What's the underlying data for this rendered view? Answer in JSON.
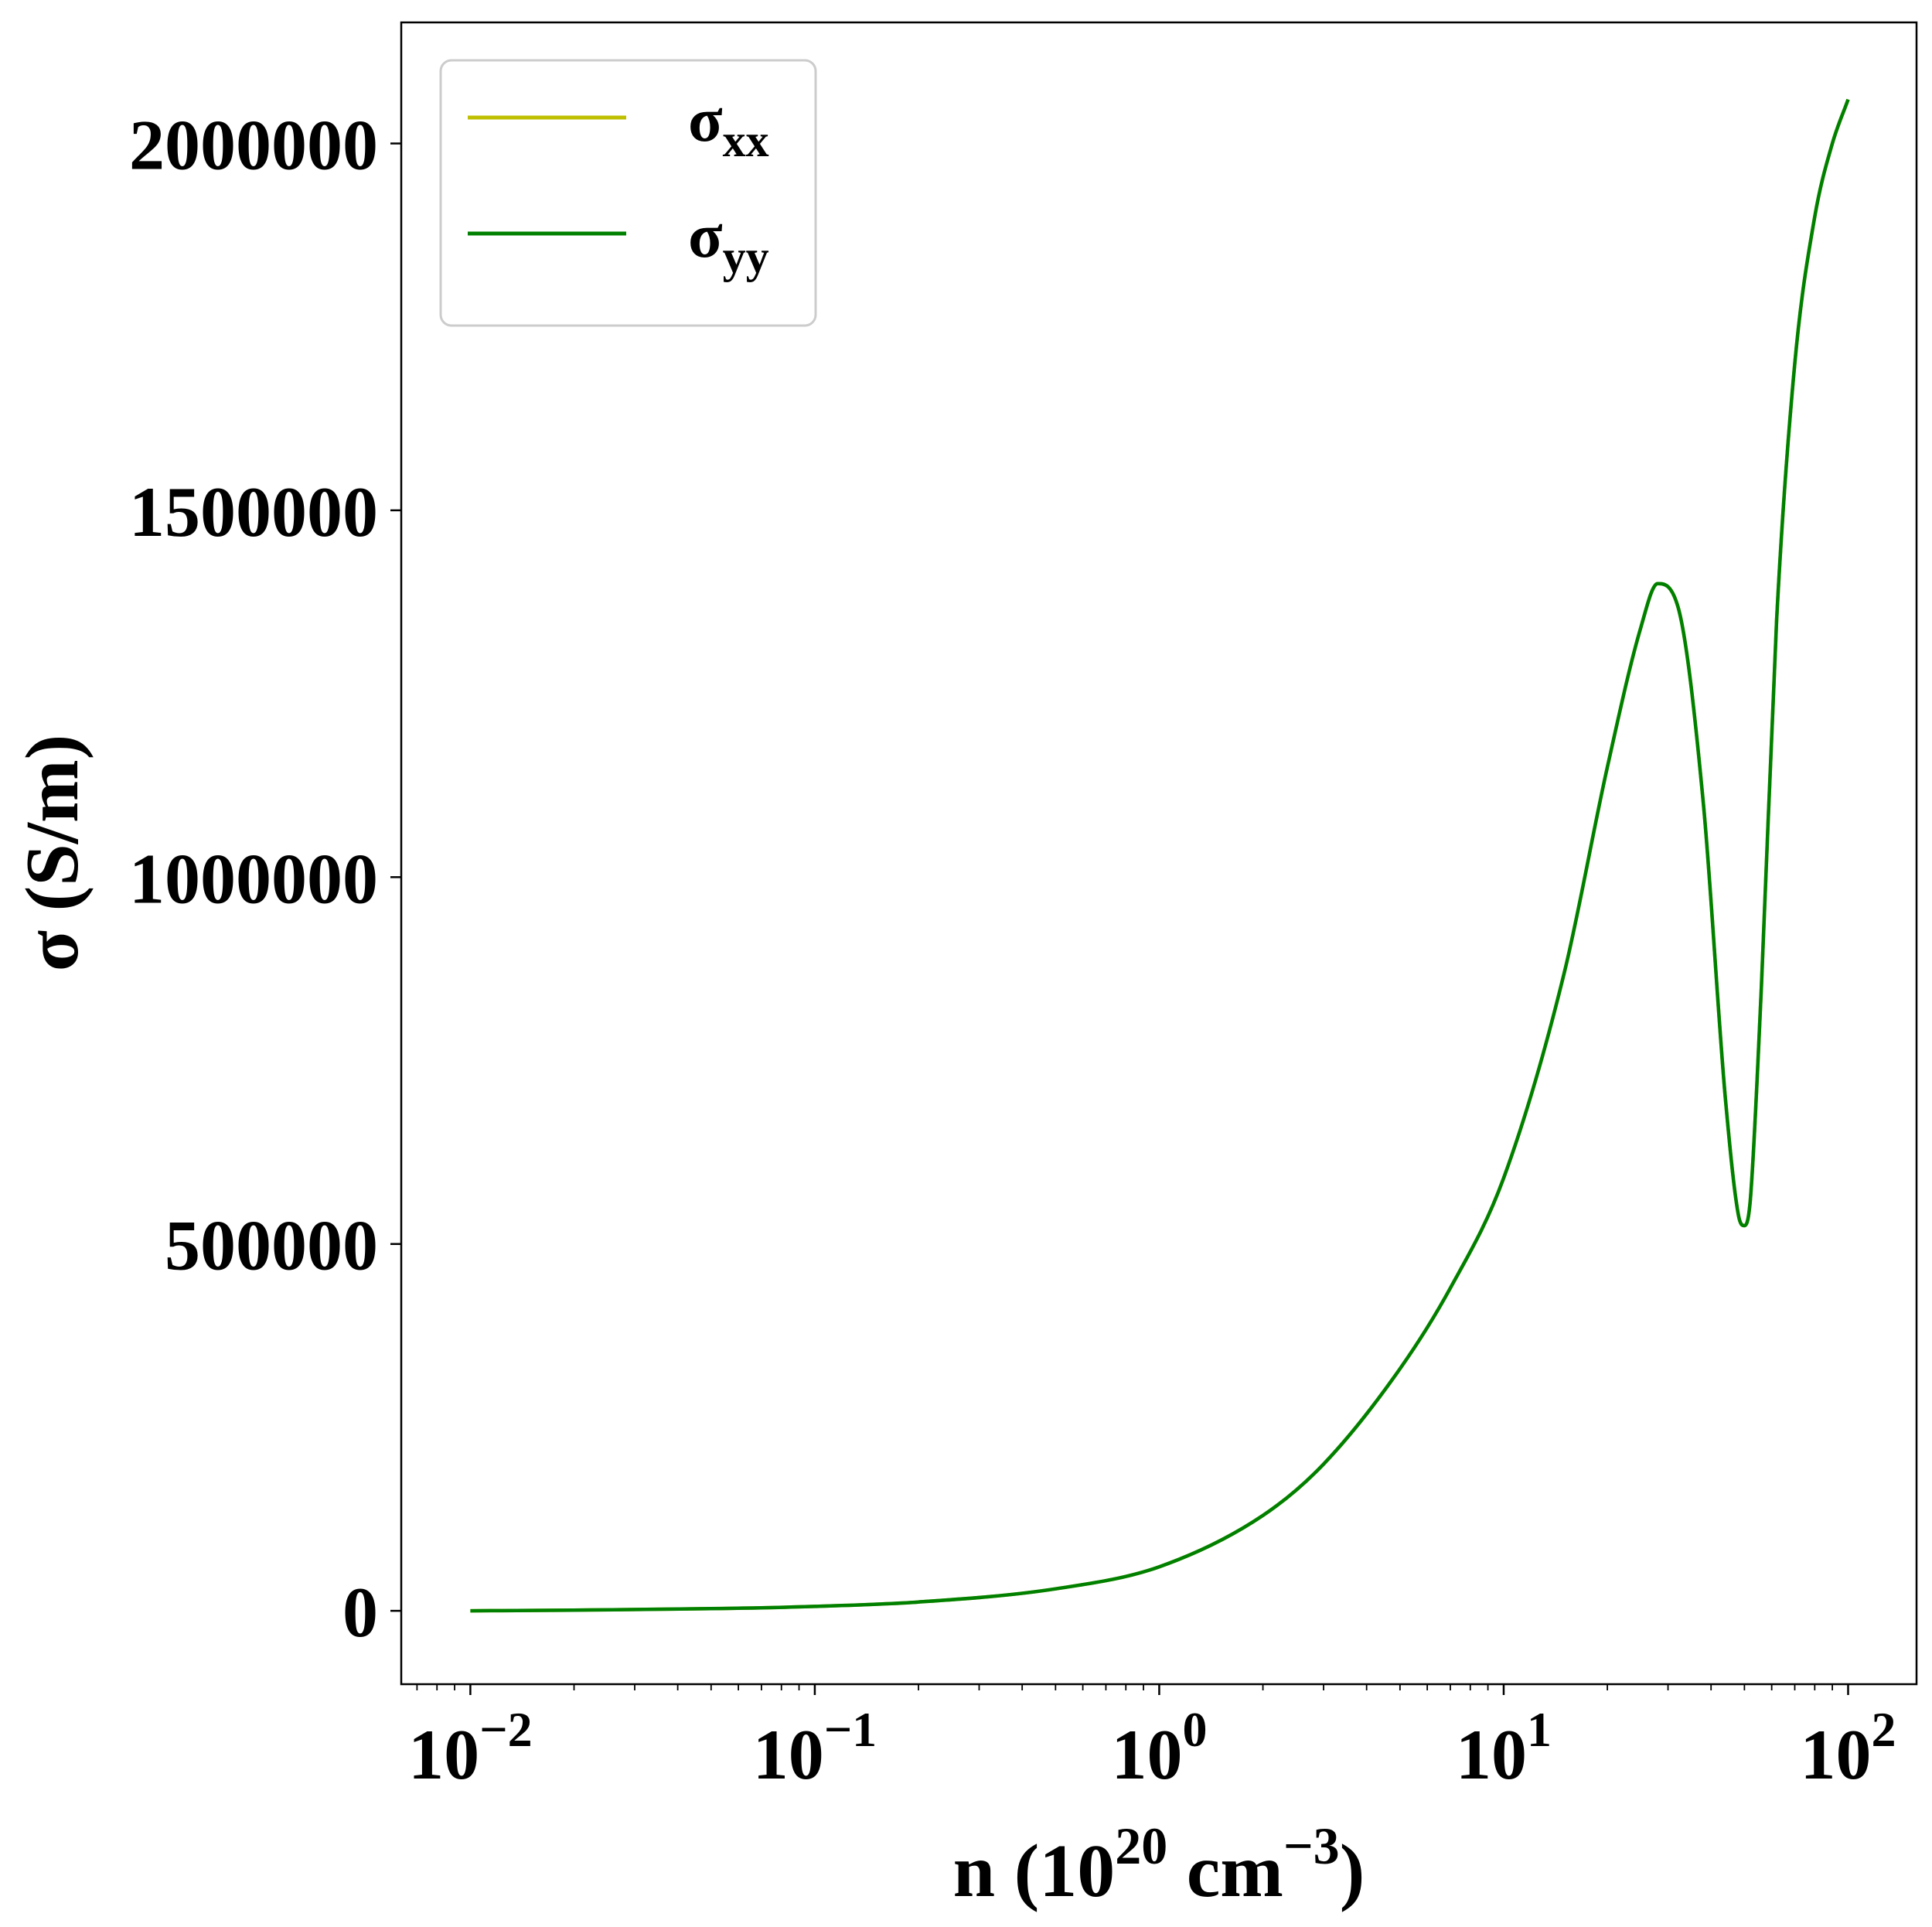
{
  "chart_data": {
    "type": "line",
    "x_scale": "log",
    "xlabel": {
      "base": "n (10",
      "exp1": "20",
      "mid": " cm",
      "exp2": "−3",
      "end": ")"
    },
    "ylabel": "σ (S/m)",
    "xlim": [
      0.0063,
      158
    ],
    "ylim": [
      -100000,
      2165000
    ],
    "x_ticks": [
      {
        "value": 0.01,
        "base": "10",
        "exp": "−2"
      },
      {
        "value": 0.1,
        "base": "10",
        "exp": "−1"
      },
      {
        "value": 1,
        "base": "10",
        "exp": "0"
      },
      {
        "value": 10,
        "base": "10",
        "exp": "1"
      },
      {
        "value": 100,
        "base": "10",
        "exp": "2"
      }
    ],
    "y_ticks": [
      {
        "value": 0,
        "label": "0"
      },
      {
        "value": 500000,
        "label": "500000"
      },
      {
        "value": 1000000,
        "label": "1000000"
      },
      {
        "value": 1500000,
        "label": "1500000"
      },
      {
        "value": 2000000,
        "label": "2000000"
      }
    ],
    "grid": false,
    "legend_position": "top-left",
    "series": [
      {
        "name": "σ",
        "sub": "xx",
        "color": "#bfbf00",
        "x": [
          0.01,
          0.02,
          0.05,
          0.1,
          0.2,
          0.5,
          1,
          2,
          3,
          5,
          7,
          10,
          15,
          20,
          25,
          28,
          32,
          38,
          44,
          48,
          50,
          52,
          56,
          62,
          70,
          80,
          90,
          100
        ],
        "y": [
          0,
          1000,
          3000,
          6000,
          12000,
          30000,
          60000,
          130000,
          200000,
          330000,
          440000,
          590000,
          870000,
          1150000,
          1340000,
          1400000,
          1370000,
          1100000,
          700000,
          540000,
          525000,
          560000,
          850000,
          1350000,
          1700000,
          1900000,
          2000000,
          2060000
        ]
      },
      {
        "name": "σ",
        "sub": "yy",
        "color": "#008000",
        "x": [
          0.01,
          0.02,
          0.05,
          0.1,
          0.2,
          0.5,
          1,
          2,
          3,
          5,
          7,
          10,
          15,
          20,
          25,
          28,
          32,
          38,
          44,
          48,
          50,
          52,
          56,
          62,
          70,
          80,
          90,
          100
        ],
        "y": [
          0,
          1000,
          3000,
          6000,
          12000,
          30000,
          60000,
          130000,
          200000,
          330000,
          440000,
          590000,
          870000,
          1150000,
          1340000,
          1400000,
          1370000,
          1100000,
          700000,
          540000,
          525000,
          560000,
          850000,
          1350000,
          1700000,
          1900000,
          2000000,
          2060000
        ]
      }
    ]
  }
}
